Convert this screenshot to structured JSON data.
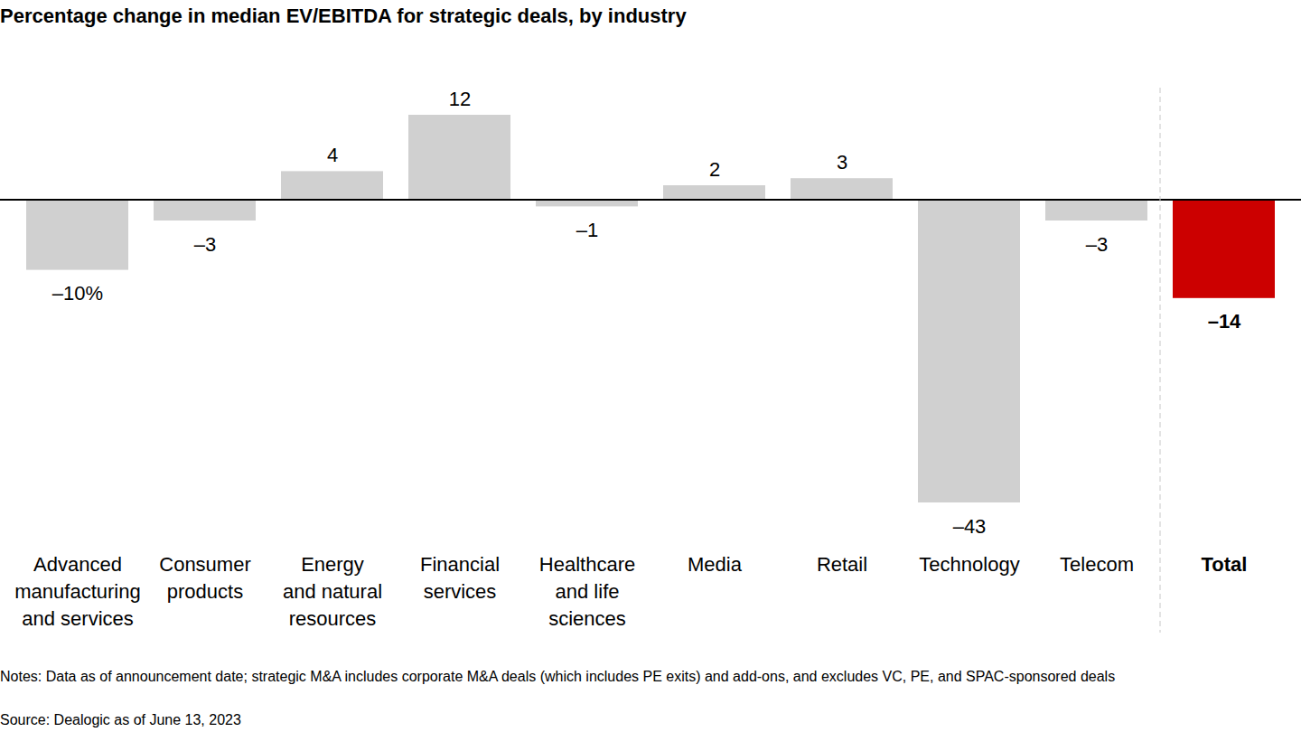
{
  "chart_data": {
    "type": "bar",
    "title": "Percentage change in median EV/EBITDA for strategic deals, by industry",
    "categories": [
      "Advanced\nmanufacturing\nand services",
      "Consumer\nproducts",
      "Energy\nand natural\nresources",
      "Financial\nservices",
      "Healthcare\nand life\nsciences",
      "Media",
      "Retail",
      "Technology",
      "Telecom",
      "Total"
    ],
    "values": [
      -10,
      -3,
      4,
      12,
      -1,
      2,
      3,
      -43,
      -3,
      -14
    ],
    "value_labels": [
      "–10%",
      "–3",
      "4",
      "12",
      "–1",
      "2",
      "3",
      "–43",
      "–3",
      "–14"
    ],
    "colors": [
      "#d0d0d0",
      "#d0d0d0",
      "#d0d0d0",
      "#d0d0d0",
      "#d0d0d0",
      "#d0d0d0",
      "#d0d0d0",
      "#d0d0d0",
      "#d0d0d0",
      "#cc0000"
    ],
    "ylim": [
      -43,
      12
    ],
    "data_labels": true,
    "tick_labels": "x",
    "grid": false,
    "notes": "Notes: Data as of announcement date; strategic M&A includes corporate M&A deals (which includes PE exits) and add-ons, and excludes VC, PE, and SPAC-sponsored deals",
    "source": "Source: Dealogic as of June 13, 2023"
  }
}
